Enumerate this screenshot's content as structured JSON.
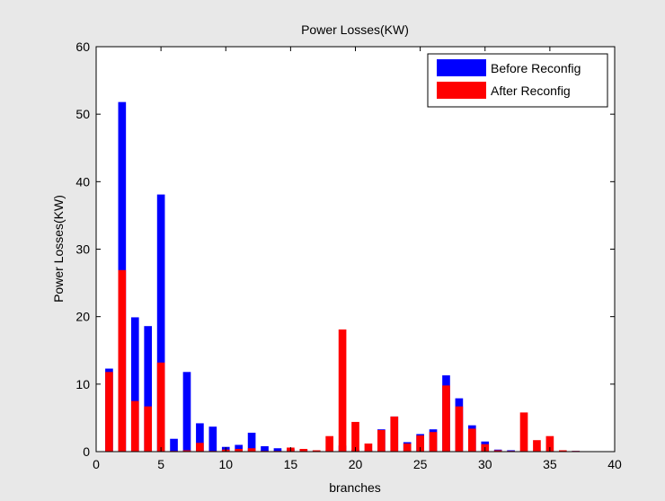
{
  "chart_data": {
    "type": "bar",
    "title": "Power Losses(KW)",
    "xlabel": "branches",
    "ylabel": "Power Losses(KW)",
    "xlim": [
      0,
      40
    ],
    "ylim": [
      0,
      60
    ],
    "xticks": [
      0,
      5,
      10,
      15,
      20,
      25,
      30,
      35,
      40
    ],
    "yticks": [
      0,
      10,
      20,
      30,
      40,
      50,
      60
    ],
    "grid": false,
    "legend_position": "top-right",
    "x": [
      1,
      2,
      3,
      4,
      5,
      6,
      7,
      8,
      9,
      10,
      11,
      12,
      13,
      14,
      15,
      16,
      17,
      18,
      19,
      20,
      21,
      22,
      23,
      24,
      25,
      26,
      27,
      28,
      29,
      30,
      31,
      32,
      33,
      34,
      35,
      36,
      37
    ],
    "series": [
      {
        "name": "Before Reconfig",
        "color": "#0000ff",
        "values": [
          12.3,
          51.8,
          19.9,
          18.6,
          38.1,
          1.9,
          11.8,
          4.2,
          3.7,
          0.7,
          1.0,
          2.8,
          0.8,
          0.5,
          0.4,
          0.3,
          0.2,
          0.1,
          0.9,
          0.3,
          0.2,
          3.3,
          5.2,
          1.4,
          2.6,
          3.3,
          11.3,
          7.9,
          3.9,
          1.5,
          0.3,
          0.2,
          0.1,
          0.1,
          0.1,
          0.1,
          0.1
        ]
      },
      {
        "name": "After Reconfig",
        "color": "#ff0000",
        "values": [
          11.8,
          26.9,
          7.5,
          6.7,
          13.2,
          0.1,
          0.2,
          1.3,
          0.1,
          0.3,
          0.4,
          0.5,
          0.1,
          0.1,
          0.6,
          0.4,
          0.2,
          2.3,
          18.1,
          4.4,
          1.2,
          3.2,
          5.2,
          1.2,
          2.4,
          2.9,
          9.8,
          6.7,
          3.4,
          1.1,
          0.2,
          0.1,
          5.8,
          1.7,
          2.3,
          0.2,
          0.1
        ]
      }
    ]
  }
}
